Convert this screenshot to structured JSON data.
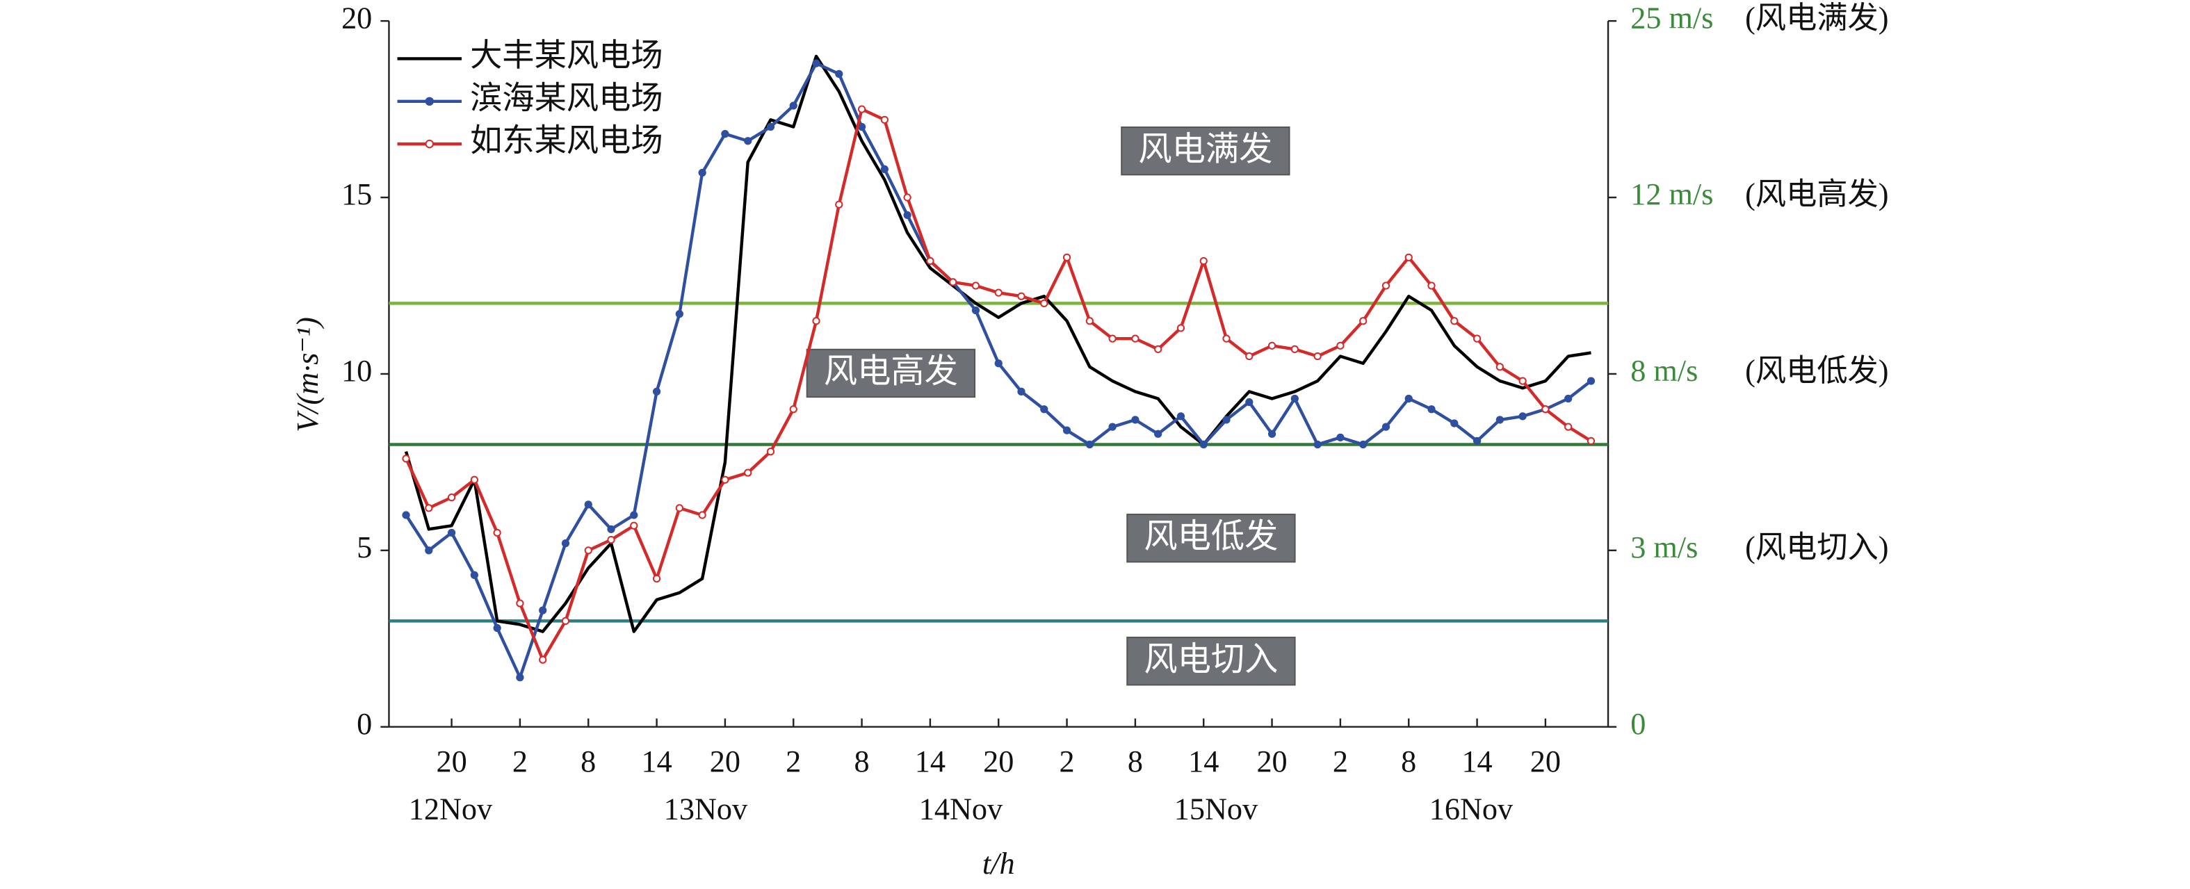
{
  "chart_data": {
    "type": "line",
    "ylabel": "V/(m·s⁻¹)",
    "xlabel": "t/h",
    "xlim": [
      14.5,
      121.5
    ],
    "xticks": [
      {
        "value": 20,
        "label": "20"
      },
      {
        "value": 26,
        "label": "2"
      },
      {
        "value": 32,
        "label": "8"
      },
      {
        "value": 38,
        "label": "14"
      },
      {
        "value": 44,
        "label": "20"
      },
      {
        "value": 50,
        "label": "2"
      },
      {
        "value": 56,
        "label": "8"
      },
      {
        "value": 62,
        "label": "14"
      },
      {
        "value": 68,
        "label": "20"
      },
      {
        "value": 74,
        "label": "2"
      },
      {
        "value": 80,
        "label": "8"
      },
      {
        "value": 86,
        "label": "14"
      },
      {
        "value": 92,
        "label": "20"
      },
      {
        "value": 98,
        "label": "2"
      },
      {
        "value": 104,
        "label": "8"
      },
      {
        "value": 110,
        "label": "14"
      },
      {
        "value": 116,
        "label": "20"
      }
    ],
    "date_labels": [
      "12Nov",
      "13Nov",
      "14Nov",
      "15Nov",
      "16Nov"
    ],
    "ylim": [
      0,
      20
    ],
    "yticks": [
      0,
      5,
      10,
      15,
      20
    ],
    "y2ticks": [
      0,
      {
        "value": 3,
        "label": "3 m/s"
      },
      {
        "value": 8,
        "label": "8 m/s"
      },
      {
        "value": 12,
        "label": "12 m/s"
      },
      {
        "value": 25,
        "label": "25 m/s"
      }
    ],
    "y2_notes": [
      "(风电切入)",
      "(风电低发)",
      "(风电高发)",
      "(风电满发)"
    ],
    "thresholds": [
      {
        "value": 12,
        "color": "#7cb342"
      },
      {
        "value": 8,
        "color": "#2e7d32"
      },
      {
        "value": 3,
        "color": "#2a8080"
      }
    ],
    "zone_labels": [
      "风电满发",
      "风电高发",
      "风电低发",
      "风电切入"
    ],
    "x": [
      16,
      18,
      20,
      22,
      24,
      26,
      28,
      30,
      32,
      34,
      36,
      38,
      40,
      42,
      44,
      46,
      48,
      50,
      52,
      54,
      56,
      58,
      60,
      62,
      64,
      66,
      68,
      70,
      72,
      74,
      76,
      78,
      80,
      82,
      84,
      86,
      88,
      90,
      92,
      94,
      96,
      98,
      100,
      102,
      104,
      106,
      108,
      110,
      112,
      114,
      116,
      118,
      120
    ],
    "series": [
      {
        "name": "大丰某风电场",
        "color": "#000000",
        "marker": "none",
        "values": [
          7.8,
          5.6,
          5.7,
          7.0,
          3.0,
          2.9,
          2.7,
          3.5,
          4.5,
          5.2,
          2.7,
          3.6,
          3.8,
          4.2,
          7.5,
          16.0,
          17.2,
          17.0,
          19.0,
          18.0,
          16.6,
          15.5,
          14.0,
          13.0,
          12.5,
          12.0,
          11.6,
          12.0,
          12.2,
          11.5,
          10.2,
          9.8,
          9.5,
          9.3,
          8.5,
          8.0,
          8.8,
          9.5,
          9.3,
          9.5,
          9.8,
          10.5,
          10.3,
          11.2,
          12.2,
          11.8,
          10.8,
          10.2,
          9.8,
          9.6,
          9.8,
          10.5,
          10.6
        ]
      },
      {
        "name": "滨海某风电场",
        "color": "#2f4fa0",
        "marker": "filled",
        "values": [
          6.0,
          5.0,
          5.5,
          4.3,
          2.8,
          1.4,
          3.3,
          5.2,
          6.3,
          5.6,
          6.0,
          9.5,
          11.7,
          15.7,
          16.8,
          16.6,
          17.0,
          17.6,
          18.8,
          18.5,
          17.0,
          15.8,
          14.5,
          13.2,
          12.6,
          11.8,
          10.3,
          9.5,
          9.0,
          8.4,
          8.0,
          8.5,
          8.7,
          8.3,
          8.8,
          8.0,
          8.7,
          9.2,
          8.3,
          9.3,
          8.0,
          8.2,
          8.0,
          8.5,
          9.3,
          9.0,
          8.6,
          8.1,
          8.7,
          8.8,
          9.0,
          9.3,
          9.8
        ]
      },
      {
        "name": "如东某风电场",
        "color": "#d42a2a",
        "marker": "hollow",
        "values": [
          7.6,
          6.2,
          6.5,
          7.0,
          5.5,
          3.5,
          1.9,
          3.0,
          5.0,
          5.3,
          5.7,
          4.2,
          6.2,
          6.0,
          7.0,
          7.2,
          7.8,
          9.0,
          11.5,
          14.8,
          17.5,
          17.2,
          15.0,
          13.2,
          12.6,
          12.5,
          12.3,
          12.2,
          12.0,
          13.3,
          11.5,
          11.0,
          11.0,
          10.7,
          11.3,
          13.2,
          11.0,
          10.5,
          10.8,
          10.7,
          10.5,
          10.8,
          11.5,
          12.5,
          13.3,
          12.5,
          11.5,
          11.0,
          10.2,
          9.8,
          9.0,
          8.5,
          8.1
        ]
      }
    ]
  }
}
